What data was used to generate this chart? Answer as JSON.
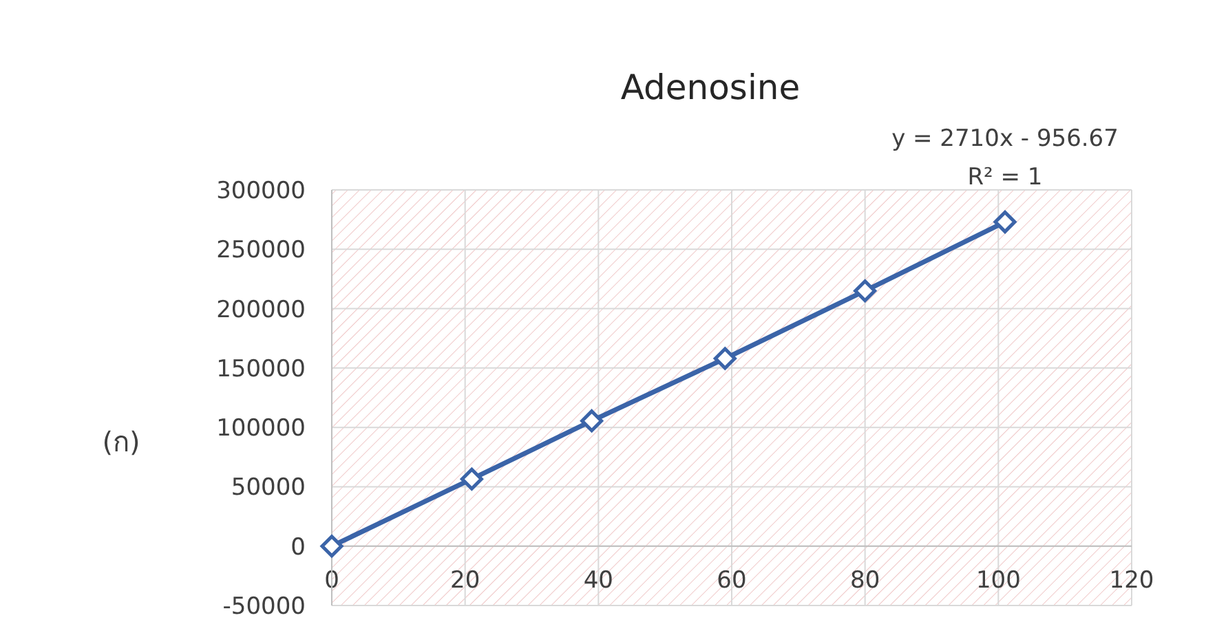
{
  "chart_data": {
    "type": "line",
    "title": "Adenosine",
    "x": [
      0,
      21,
      39,
      59,
      80,
      101
    ],
    "series": [
      {
        "color": "#3b64a8",
        "values": [
          0,
          56500,
          105500,
          158000,
          215000,
          273000
        ]
      }
    ],
    "xlim": [
      0,
      120
    ],
    "xticks": [
      0,
      20,
      40,
      60,
      80,
      100,
      120
    ],
    "ylim": [
      -50000,
      300000
    ],
    "yticks": [
      -50000,
      0,
      50000,
      100000,
      150000,
      200000,
      250000,
      300000
    ],
    "grid": true,
    "marker": "diamond",
    "line_style": "solid",
    "annotations": [
      "y = 2710x - 956.67",
      "R² = 1",
      "(ก)"
    ]
  }
}
